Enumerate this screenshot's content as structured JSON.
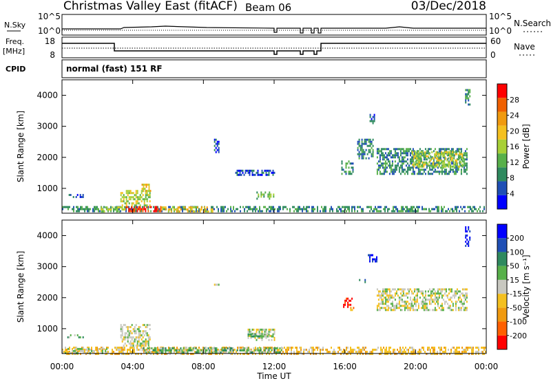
{
  "header": {
    "title": "Christmas Valley East (fitACF)",
    "beam": "Beam 06",
    "date": "03/Dec/2018"
  },
  "top_panels": {
    "nsky_label": "N.Sky",
    "nsky_ticks": [
      "10^5",
      "10^0"
    ],
    "nsearch_label": "N.Search",
    "nsearch_ticks": [
      "10^5",
      "10^0"
    ],
    "freq_label": "Freq.",
    "freq_unit": "[MHz]",
    "freq_ticks": [
      "18",
      "8"
    ],
    "nave_label": "Nave",
    "nave_ticks": [
      "60",
      "0"
    ],
    "cpid_label": "CPID",
    "cpid_text": "normal (fast) 151 RF"
  },
  "colors": {
    "power_scale": [
      "#0000ff",
      "#1f4fb5",
      "#2f8a5f",
      "#58b04a",
      "#a8d037",
      "#f4c020",
      "#f09a10",
      "#f06000",
      "#ff0000"
    ],
    "velocity_scale": [
      "#ff0000",
      "#ff6000",
      "#f09a10",
      "#f4c020",
      "#c8c8c0",
      "#58b04a",
      "#2f8a5f",
      "#1f4fb5",
      "#0000ff"
    ]
  },
  "chart_data": [
    {
      "type": "heatmap",
      "name": "power",
      "ylabel": "Slant Range [km]",
      "xlim": [
        0,
        24
      ],
      "ylim": [
        200,
        4500
      ],
      "yticks": [
        "1000",
        "2000",
        "3000",
        "4000"
      ],
      "colorbar_label": "Power [dB]",
      "colorbar_ticks": [
        "4",
        "8",
        "12",
        "16",
        "20",
        "24",
        "28"
      ],
      "regions": [
        {
          "x": [
            0.0,
            24.0
          ],
          "y": [
            250,
            430
          ],
          "level": 2
        },
        {
          "x": [
            3.6,
            5.6
          ],
          "y": [
            250,
            430
          ],
          "level": 8
        },
        {
          "x": [
            2.2,
            3.6
          ],
          "y": [
            250,
            420
          ],
          "level": 4
        },
        {
          "x": [
            5.6,
            8.5
          ],
          "y": [
            250,
            420
          ],
          "level": 5
        },
        {
          "x": [
            3.3,
            5.0
          ],
          "y": [
            480,
            950
          ],
          "level": 4
        },
        {
          "x": [
            4.5,
            5.0
          ],
          "y": [
            900,
            1150
          ],
          "level": 5
        },
        {
          "x": [
            0.3,
            1.2
          ],
          "y": [
            700,
            820
          ],
          "level": 1
        },
        {
          "x": [
            8.6,
            8.9
          ],
          "y": [
            2200,
            2600
          ],
          "level": 1
        },
        {
          "x": [
            9.8,
            12.0
          ],
          "y": [
            1450,
            1600
          ],
          "level": 1
        },
        {
          "x": [
            11.0,
            12.0
          ],
          "y": [
            700,
            900
          ],
          "level": 3
        },
        {
          "x": [
            15.8,
            16.5
          ],
          "y": [
            1500,
            1900
          ],
          "level": 2
        },
        {
          "x": [
            16.7,
            17.6
          ],
          "y": [
            2000,
            2600
          ],
          "level": 2
        },
        {
          "x": [
            17.4,
            17.7
          ],
          "y": [
            3100,
            3400
          ],
          "level": 1
        },
        {
          "x": [
            17.8,
            22.9
          ],
          "y": [
            1500,
            2300
          ],
          "level": 2
        },
        {
          "x": [
            19.8,
            22.7
          ],
          "y": [
            1700,
            2200
          ],
          "level": 4
        },
        {
          "x": [
            22.8,
            23.1
          ],
          "y": [
            3700,
            4200
          ],
          "level": 2
        }
      ]
    },
    {
      "type": "heatmap",
      "name": "velocity",
      "xlabel": "Time UT",
      "ylabel": "Slant Range [km]",
      "xlim": [
        0,
        24
      ],
      "ylim": [
        200,
        4500
      ],
      "xticks": [
        "00:00",
        "04:00",
        "08:00",
        "12:00",
        "16:00",
        "20:00",
        "00:00"
      ],
      "yticks": [
        "1000",
        "2000",
        "3000",
        "4000"
      ],
      "colorbar_label": "Velocity [m s⁻¹]",
      "colorbar_ticks": [
        "-200",
        "-100",
        "-50",
        "-15",
        "15",
        "50",
        "100",
        "200"
      ],
      "regions": [
        {
          "x": [
            0.0,
            24.0
          ],
          "y": [
            220,
            420
          ],
          "level": 3
        },
        {
          "x": [
            0.0,
            2.5
          ],
          "y": [
            230,
            380
          ],
          "level": 4
        },
        {
          "x": [
            4.5,
            12.5
          ],
          "y": [
            220,
            400
          ],
          "level": 5
        },
        {
          "x": [
            3.3,
            5.0
          ],
          "y": [
            450,
            1150
          ],
          "level": 4
        },
        {
          "x": [
            0.3,
            1.2
          ],
          "y": [
            700,
            820
          ],
          "level": 5
        },
        {
          "x": [
            8.6,
            8.9
          ],
          "y": [
            2300,
            2450
          ],
          "level": 4
        },
        {
          "x": [
            10.5,
            12.0
          ],
          "y": [
            650,
            1000
          ],
          "level": 4
        },
        {
          "x": [
            10.5,
            12.0
          ],
          "y": [
            750,
            850
          ],
          "level": 5
        },
        {
          "x": [
            15.9,
            16.4
          ],
          "y": [
            1700,
            2000
          ],
          "level": 0
        },
        {
          "x": [
            16.3,
            16.6
          ],
          "y": [
            1600,
            1700
          ],
          "level": 2
        },
        {
          "x": [
            16.8,
            17.2
          ],
          "y": [
            2500,
            2600
          ],
          "level": 7
        },
        {
          "x": [
            17.3,
            17.8
          ],
          "y": [
            3200,
            3400
          ],
          "level": 8
        },
        {
          "x": [
            17.8,
            22.9
          ],
          "y": [
            1600,
            2300
          ],
          "level": 4
        },
        {
          "x": [
            22.8,
            23.1
          ],
          "y": [
            3700,
            4300
          ],
          "level": 8
        }
      ]
    }
  ]
}
